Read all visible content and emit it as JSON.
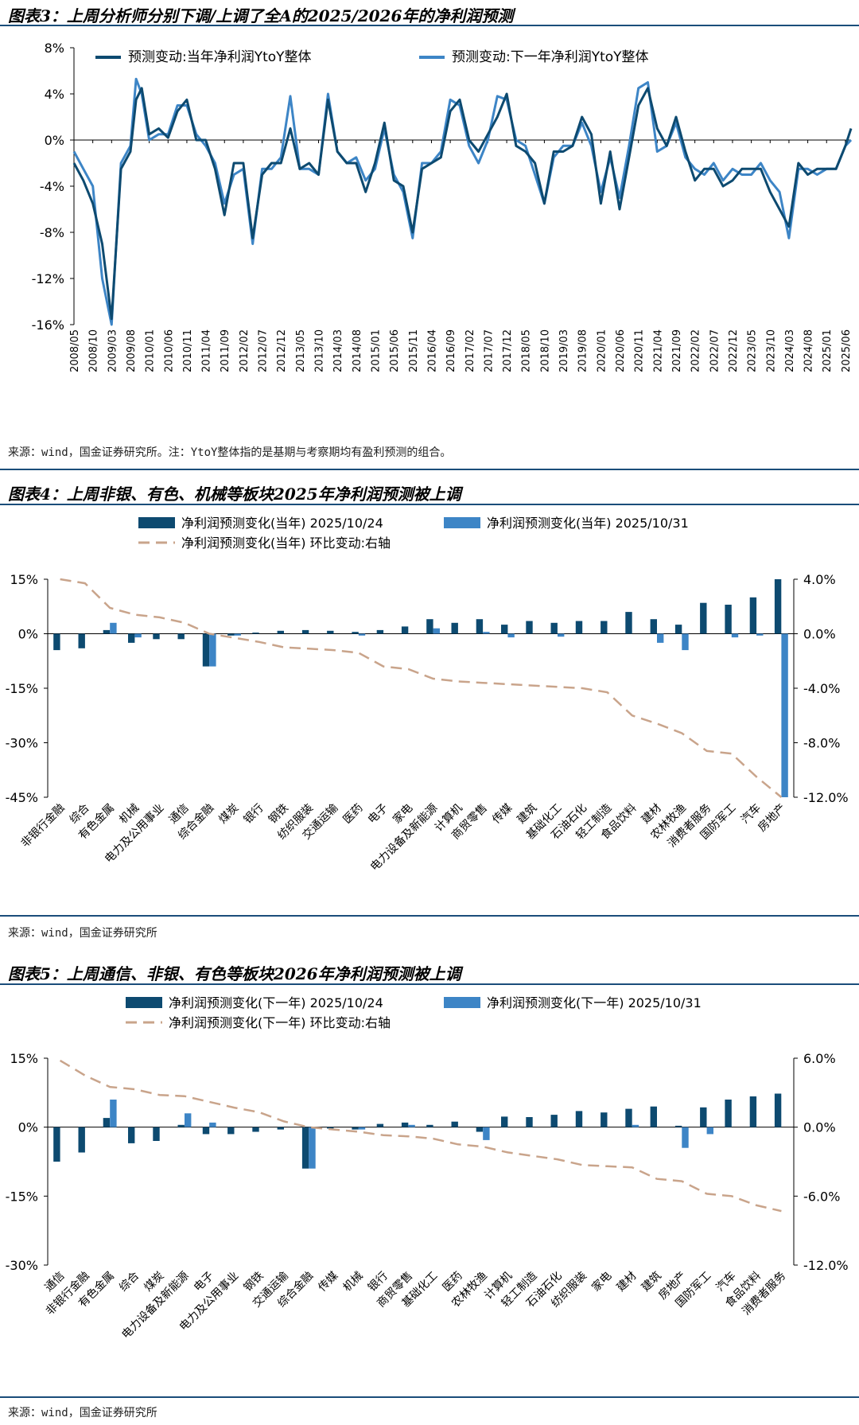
{
  "colors": {
    "dark": "#0d4a70",
    "light": "#3d85c6",
    "dash": "#c9a48b",
    "axis": "#000000"
  },
  "fig3": {
    "title": "图表3：上周分析师分别下调/上调了全A的2025/2026年的净利润预测",
    "source": "来源：wind，国金证券研究所。注：YtoY整体指的是基期与考察期均有盈利预测的组合。",
    "chart_data": {
      "type": "line",
      "title": "图表3：上周分析师分别下调/上调了全A的2025/2026年的净利润预测",
      "ylim": [
        -16,
        8
      ],
      "yticks": [
        "8%",
        "4%",
        "0%",
        "-4%",
        "-8%",
        "-12%",
        "-16%"
      ],
      "xticks": [
        "2008/05",
        "2008/10",
        "2009/03",
        "2009/08",
        "2010/01",
        "2010/06",
        "2010/11",
        "2011/04",
        "2011/09",
        "2012/02",
        "2012/07",
        "2012/12",
        "2013/05",
        "2013/10",
        "2014/03",
        "2014/08",
        "2015/01",
        "2015/06",
        "2015/11",
        "2016/04",
        "2016/09",
        "2017/02",
        "2017/07",
        "2017/12",
        "2018/05",
        "2018/10",
        "2019/03",
        "2019/08",
        "2020/01",
        "2020/06",
        "2020/11",
        "2021/04",
        "2021/09",
        "2022/02",
        "2022/07",
        "2022/12",
        "2023/05",
        "2023/10",
        "2024/03",
        "2024/08",
        "2025/01",
        "2025/06"
      ],
      "series": [
        {
          "name": "预测变动:当年净利润YtoY整体",
          "color": "#0d4a70",
          "x": [
            0,
            0.5,
            1,
            1.5,
            2,
            2.5,
            3,
            3.3,
            3.6,
            4,
            4.5,
            5,
            5.5,
            6,
            6.5,
            7,
            7.5,
            8,
            8.5,
            9,
            9.5,
            10,
            10.5,
            11,
            11.5,
            12,
            12.5,
            13,
            13.5,
            14,
            14.5,
            15,
            15.5,
            16,
            16.5,
            17,
            17.5,
            18,
            18.5,
            19,
            19.5,
            20,
            20.5,
            21,
            21.5,
            22,
            22.5,
            23,
            23.5,
            24,
            24.5,
            25,
            25.5,
            26,
            26.5,
            27,
            27.5,
            28,
            28.5,
            29,
            29.5,
            30,
            30.5,
            31,
            31.5,
            32,
            32.5,
            33,
            33.5,
            34,
            34.5,
            35,
            35.5,
            36,
            36.5,
            37,
            37.5,
            38,
            38.5,
            39,
            39.5,
            40,
            40.5,
            41,
            41.3
          ],
          "y": [
            -2,
            -3.5,
            -5.5,
            -9,
            -15.5,
            -2.5,
            -1,
            3.5,
            4.5,
            0.5,
            1,
            0.2,
            2.5,
            3.5,
            0,
            0,
            -2.5,
            -6.5,
            -2,
            -2,
            -8.5,
            -3,
            -2,
            -2,
            1,
            -2.5,
            -2,
            -3,
            3.5,
            -1,
            -2,
            -2,
            -4.5,
            -2,
            1.5,
            -3.5,
            -4,
            -8,
            -2.5,
            -2,
            -1.5,
            2.5,
            3.5,
            0,
            -1,
            0.5,
            2,
            4,
            -0.5,
            -1,
            -2,
            -5.5,
            -1,
            -1,
            -0.5,
            2,
            0.5,
            -5.5,
            -1,
            -6,
            -1.5,
            3,
            4.5,
            1,
            -0.5,
            2,
            -1,
            -3.5,
            -2.5,
            -2.5,
            -4,
            -3.5,
            -2.5,
            -2.5,
            -2.5,
            -4.5,
            -6,
            -7.5,
            -2,
            -3,
            -2.5,
            -2.5,
            -2.5,
            -0.5,
            1
          ]
        },
        {
          "name": "预测变动:下一年净利润YtoY整体",
          "color": "#3d85c6",
          "x": [
            0,
            0.5,
            1,
            1.5,
            2,
            2.5,
            3,
            3.3,
            3.6,
            4,
            4.5,
            5,
            5.5,
            6,
            6.5,
            7,
            7.5,
            8,
            8.5,
            9,
            9.5,
            10,
            10.5,
            11,
            11.5,
            12,
            12.5,
            13,
            13.5,
            14,
            14.5,
            15,
            15.5,
            16,
            16.5,
            17,
            17.5,
            18,
            18.5,
            19,
            19.5,
            20,
            20.5,
            21,
            21.5,
            22,
            22.5,
            23,
            23.5,
            24,
            24.5,
            25,
            25.5,
            26,
            26.5,
            27,
            27.5,
            28,
            28.5,
            29,
            29.5,
            30,
            30.5,
            31,
            31.5,
            32,
            32.5,
            33,
            33.5,
            34,
            34.5,
            35,
            35.5,
            36,
            36.5,
            37,
            37.5,
            38,
            38.5,
            39,
            39.5,
            40,
            40.5,
            41,
            41.3
          ],
          "y": [
            -1,
            -2.5,
            -4,
            -12,
            -16,
            -2,
            -0.5,
            5.3,
            4,
            0,
            0.5,
            0.5,
            3,
            3,
            0.5,
            -0.5,
            -2,
            -5.5,
            -3,
            -2.5,
            -9,
            -2.5,
            -2.5,
            -1.5,
            3.8,
            -2.5,
            -2.5,
            -3,
            4,
            -1,
            -2,
            -1.5,
            -3.5,
            -2.5,
            1,
            -3,
            -4.5,
            -8.5,
            -2,
            -2,
            -1,
            3.5,
            3,
            -0.5,
            -2,
            0,
            3.8,
            3.5,
            0,
            -0.5,
            -3,
            -5.5,
            -1.5,
            -0.5,
            -0.5,
            1.5,
            -0.5,
            -4.5,
            -1.5,
            -5,
            -0.5,
            4.5,
            5,
            -1,
            -0.5,
            1.5,
            -1.5,
            -2.5,
            -3,
            -2,
            -3.5,
            -2.5,
            -3,
            -3,
            -2,
            -3.5,
            -4.5,
            -8.5,
            -2.5,
            -2.5,
            -3,
            -2.5,
            -2.5,
            -0.5,
            0
          ]
        }
      ]
    }
  },
  "fig4": {
    "title": "图表4：上周非银、有色、机械等板块2025年净利润预测被上调",
    "source": "来源：wind，国金证券研究所",
    "chart_data": {
      "type": "bar",
      "title": "图表4：上周非银、有色、机械等板块2025年净利润预测被上调",
      "categories": [
        "非银行金融",
        "综合",
        "有色金属",
        "机械",
        "电力及公用事业",
        "通信",
        "综合金融",
        "煤炭",
        "银行",
        "钢铁",
        "纺织服装",
        "交通运输",
        "医药",
        "电子",
        "家电",
        "电力设备及新能源",
        "计算机",
        "商贸零售",
        "传媒",
        "建筑",
        "基础化工",
        "石油石化",
        "轻工制造",
        "食品饮料",
        "建材",
        "农林牧渔",
        "消费者服务",
        "国防军工",
        "汽车",
        "房地产"
      ],
      "series": [
        {
          "name": "净利润预测变化(当年) 2025/10/24",
          "type": "bar",
          "axis": "left",
          "color": "#0d4a70",
          "values": [
            -4.5,
            -4,
            1,
            -2.5,
            -1.5,
            -1.5,
            -9,
            -0.5,
            0.3,
            0.8,
            1,
            0.8,
            0.5,
            1,
            2,
            4,
            3,
            4,
            2.5,
            3.5,
            3,
            3.5,
            3.5,
            6,
            4,
            2.5,
            8.5,
            8,
            10,
            15
          ]
        },
        {
          "name": "净利润预测变化(当年) 2025/10/31",
          "type": "bar",
          "axis": "left",
          "color": "#3d85c6",
          "values": [
            0,
            0,
            3,
            -1,
            0,
            0,
            -9,
            -0.5,
            0,
            0,
            0,
            0,
            -0.5,
            0,
            0,
            1.5,
            0,
            0.5,
            -1,
            0,
            -0.8,
            0,
            0,
            0,
            -2.5,
            -4.5,
            0,
            -1,
            -0.5,
            -45
          ]
        },
        {
          "name": "净利润预测变化(当年) 环比变动:右轴",
          "type": "line",
          "axis": "right",
          "color": "#c9a48b",
          "values": [
            4,
            3.7,
            1.9,
            1.4,
            1.2,
            0.8,
            0,
            -0.3,
            -0.6,
            -1,
            -1.1,
            -1.2,
            -1.4,
            -2.4,
            -2.6,
            -3.3,
            -3.5,
            -3.6,
            -3.7,
            -3.8,
            -3.9,
            -4,
            -4.3,
            -6,
            -6.6,
            -7.3,
            -8.6,
            -8.8,
            -10.5,
            -12
          ]
        }
      ],
      "ylim": [
        -45,
        15
      ],
      "y2lim": [
        -12,
        4
      ],
      "yticks": [
        "15%",
        "0%",
        "-15%",
        "-30%",
        "-45%"
      ],
      "y2ticks": [
        "4.0%",
        "0.0%",
        "-4.0%",
        "-8.0%",
        "-12.0%"
      ]
    }
  },
  "fig5": {
    "title": "图表5：上周通信、非银、有色等板块2026年净利润预测被上调",
    "source": "来源：wind，国金证券研究所",
    "chart_data": {
      "type": "bar",
      "title": "图表5：上周通信、非银、有色等板块2026年净利润预测被上调",
      "categories": [
        "通信",
        "非银行金融",
        "有色金属",
        "综合",
        "煤炭",
        "电力设备及新能源",
        "电子",
        "电力及公用事业",
        "钢铁",
        "交通运输",
        "综合金融",
        "传媒",
        "机械",
        "银行",
        "商贸零售",
        "基础化工",
        "医药",
        "农林牧渔",
        "计算机",
        "轻工制造",
        "石油石化",
        "纺织服装",
        "家电",
        "建材",
        "建筑",
        "房地产",
        "国防军工",
        "汽车",
        "食品饮料",
        "消费者服务"
      ],
      "series": [
        {
          "name": "净利润预测变化(下一年) 2025/10/24",
          "type": "bar",
          "axis": "left",
          "color": "#0d4a70",
          "values": [
            -7.5,
            -5.5,
            2,
            -3.5,
            -3,
            0.5,
            -1.5,
            -1.5,
            -1,
            -0.5,
            -9,
            -0.3,
            -0.5,
            0.7,
            1,
            0.5,
            1.2,
            -1,
            2.3,
            2.2,
            2.7,
            3.5,
            3.2,
            4,
            4.5,
            0.3,
            4.3,
            6,
            6.7,
            7.3
          ]
        },
        {
          "name": "净利润预测变化(下一年) 2025/10/31",
          "type": "bar",
          "axis": "left",
          "color": "#3d85c6",
          "values": [
            0,
            0,
            6,
            0,
            0,
            3,
            1,
            0,
            0,
            0,
            -9,
            0,
            -0.5,
            0,
            0.5,
            0,
            0,
            -2.8,
            0,
            0,
            0,
            0,
            0,
            0.5,
            0,
            -4.5,
            -1.5,
            0,
            0,
            0
          ]
        },
        {
          "name": "净利润预测变化(下一年) 环比变动:右轴",
          "type": "line",
          "axis": "right",
          "color": "#c9a48b",
          "values": [
            5.8,
            4.5,
            3.5,
            3.3,
            2.8,
            2.7,
            2.2,
            1.7,
            1.3,
            0.5,
            0,
            -0.2,
            -0.4,
            -0.7,
            -0.8,
            -1,
            -1.5,
            -1.7,
            -2.2,
            -2.5,
            -2.8,
            -3.3,
            -3.4,
            -3.5,
            -4.5,
            -4.7,
            -5.8,
            -6,
            -6.8,
            -7.3
          ]
        }
      ],
      "ylim": [
        -30,
        15
      ],
      "y2lim": [
        -12,
        6
      ],
      "yticks": [
        "15%",
        "0%",
        "-15%",
        "-30%"
      ],
      "y2ticks": [
        "6.0%",
        "0.0%",
        "-6.0%",
        "-12.0%"
      ]
    }
  }
}
